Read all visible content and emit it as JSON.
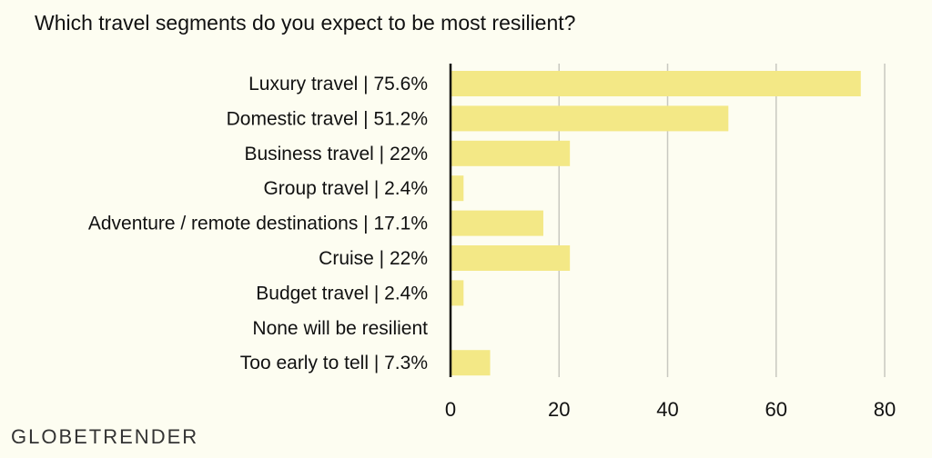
{
  "chart_data": {
    "type": "bar",
    "orientation": "horizontal",
    "title": "Which travel segments do you expect to be most resilient?",
    "categories": [
      "Luxury travel | 75.6%",
      "Domestic travel | 51.2%",
      "Business travel | 22%",
      "Group travel | 2.4%",
      "Adventure / remote destinations | 17.1%",
      "Cruise | 22%",
      "Budget travel | 2.4%",
      "None will be resilient",
      "Too early to tell | 7.3%"
    ],
    "values": [
      75.6,
      51.2,
      22,
      2.4,
      17.1,
      22,
      2.4,
      0,
      7.3
    ],
    "xlim": [
      0,
      80
    ],
    "xticks": [
      "0",
      "20",
      "40",
      "60",
      "80"
    ],
    "grid": true,
    "bar_color": "#f3e886",
    "background": "#fdfdf1"
  },
  "logo": "GLOBETRENDER"
}
